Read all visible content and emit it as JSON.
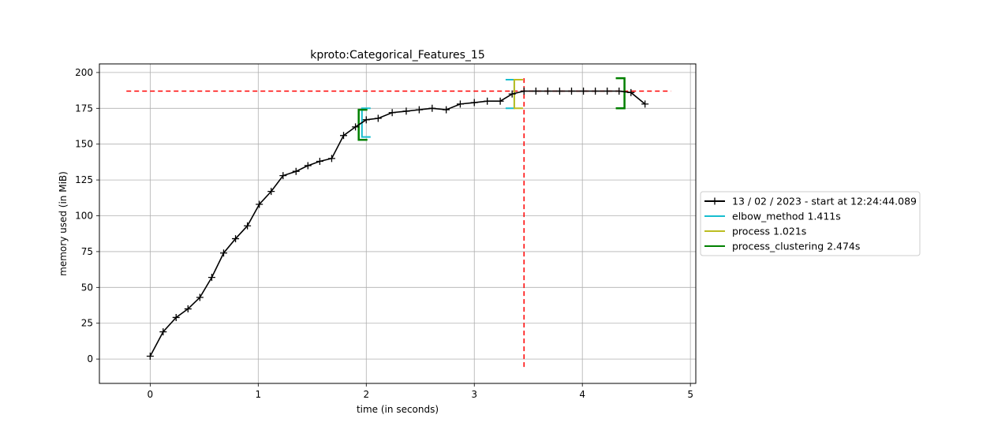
{
  "chart_data": {
    "type": "line",
    "title": "kproto:Categorical_Features_15",
    "xlabel": "time (in seconds)",
    "ylabel": "memory used (in MiB)",
    "xlim": [
      -0.47,
      5.05
    ],
    "ylim": [
      -17,
      206
    ],
    "xticks": [
      0,
      1,
      2,
      3,
      4,
      5
    ],
    "yticks": [
      0,
      25,
      50,
      75,
      100,
      125,
      150,
      175,
      200
    ],
    "grid": true,
    "legend_position": "center-right outside",
    "series": [
      {
        "name": "13 / 02 / 2023 - start at 12:24:44.089",
        "color": "#000000",
        "marker": "plus",
        "x": [
          0,
          0.12,
          0.24,
          0.35,
          0.46,
          0.57,
          0.68,
          0.79,
          0.9,
          1.01,
          1.12,
          1.23,
          1.35,
          1.46,
          1.57,
          1.68,
          1.79,
          1.9,
          2.0,
          2.11,
          2.24,
          2.37,
          2.49,
          2.61,
          2.74,
          2.87,
          3.0,
          3.12,
          3.24,
          3.35,
          3.46,
          3.57,
          3.68,
          3.79,
          3.9,
          4.01,
          4.12,
          4.23,
          4.34,
          4.45,
          4.58
        ],
        "y": [
          2,
          19,
          29,
          35,
          43,
          57,
          74,
          84,
          93,
          108,
          117,
          128,
          131,
          135,
          138,
          140,
          156,
          162,
          167,
          168,
          172,
          173,
          174,
          175,
          174,
          178,
          179,
          180,
          180,
          185,
          187,
          187,
          187,
          187,
          187,
          187,
          187,
          187,
          187,
          186,
          178
        ]
      }
    ],
    "function_brackets": [
      {
        "name": "elbow_method 1.411s",
        "color": "#17becf",
        "start": 1.96,
        "end": 3.37
      },
      {
        "name": "process 1.021s",
        "color": "#bcbd22",
        "start": 3.37,
        "end": 4.39
      },
      {
        "name": "process_clustering 2.474s",
        "color": "#008000",
        "start": 1.93,
        "end": 4.39
      }
    ],
    "peak_lines": {
      "color": "#ff0000",
      "peak_y": 187,
      "peak_x": 3.46
    }
  }
}
